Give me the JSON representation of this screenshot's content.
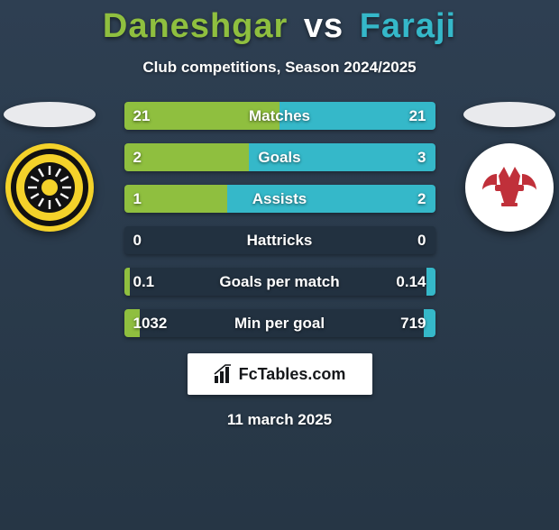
{
  "title": {
    "player1": "Daneshgar",
    "vs": "vs",
    "player2": "Faraji",
    "color1": "#8fbf3f",
    "colorVs": "#ffffff",
    "color2": "#35b8c9"
  },
  "subtitle": "Club competitions, Season 2024/2025",
  "player1_color": "#8fbf3f",
  "player2_color": "#35b8c9",
  "bar_track_color": "#223140",
  "branding": {
    "text": "FcTables.com"
  },
  "date": "11 march 2025",
  "club1": {
    "badge_bg": "#f4d22a",
    "inner_bg": "#111111",
    "accent": "#ffffff"
  },
  "club2": {
    "badge_bg": "#ffffff",
    "accent": "#c0303a"
  },
  "stats": [
    {
      "label": "Matches",
      "v1": "21",
      "v2": "21",
      "p1": 0.5,
      "p2": 0.5
    },
    {
      "label": "Goals",
      "v1": "2",
      "v2": "3",
      "p1": 0.4,
      "p2": 0.6
    },
    {
      "label": "Assists",
      "v1": "1",
      "v2": "2",
      "p1": 0.333,
      "p2": 0.667
    },
    {
      "label": "Hattricks",
      "v1": "0",
      "v2": "0",
      "p1": 0.0,
      "p2": 0.0
    },
    {
      "label": "Goals per match",
      "v1": "0.1",
      "v2": "0.14",
      "p1": 0.02,
      "p2": 0.028
    },
    {
      "label": "Min per goal",
      "v1": "1032",
      "v2": "719",
      "p1": 0.05,
      "p2": 0.035
    }
  ]
}
